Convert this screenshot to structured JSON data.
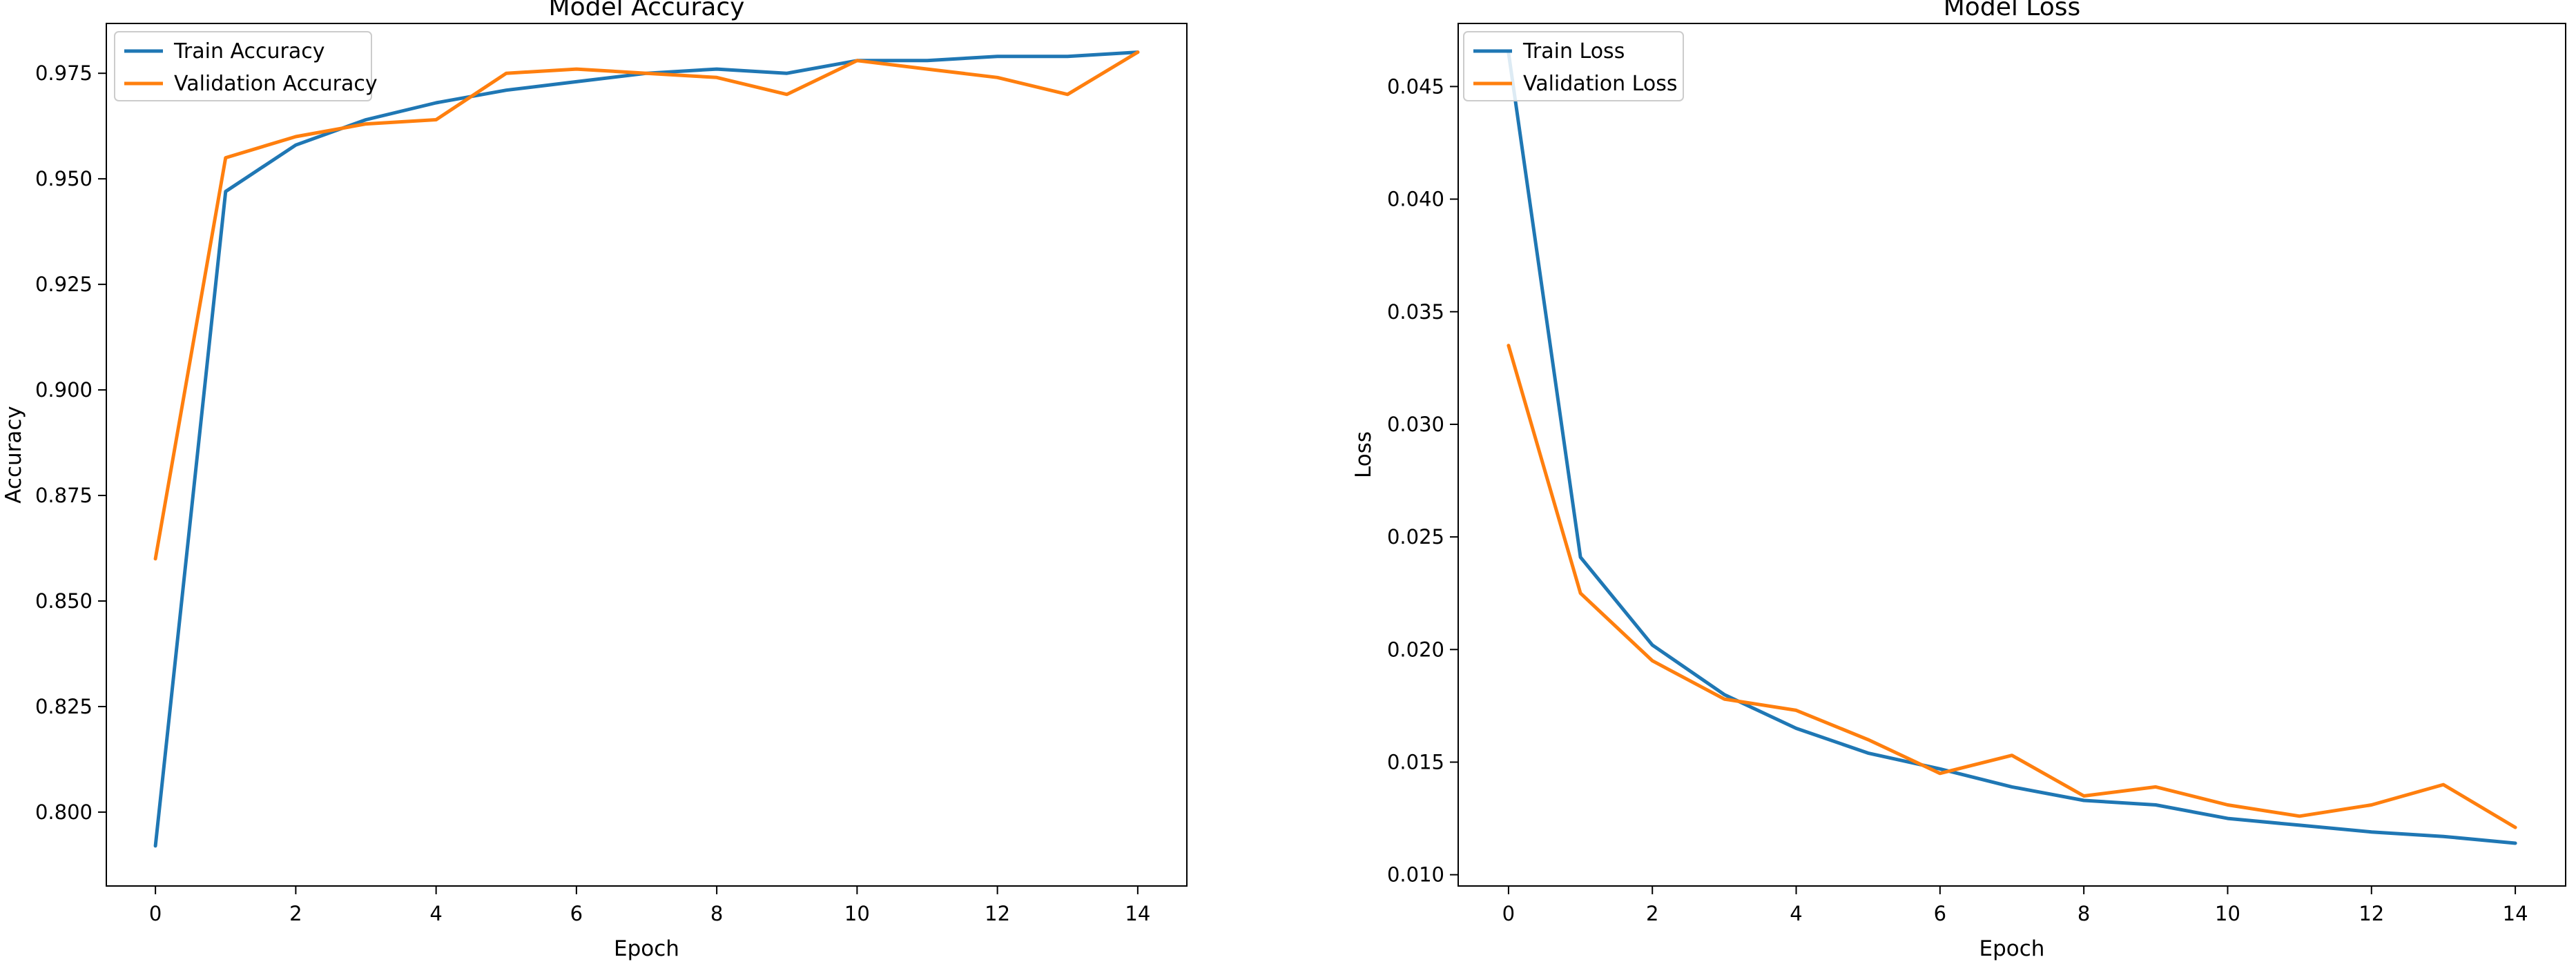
{
  "chart_data": [
    {
      "type": "line",
      "title": "Model Accuracy",
      "xlabel": "Epoch",
      "ylabel": "Accuracy",
      "x": [
        0,
        1,
        2,
        3,
        4,
        5,
        6,
        7,
        8,
        9,
        10,
        11,
        12,
        13,
        14
      ],
      "xlim": [
        -0.7,
        14.7
      ],
      "ylim": [
        0.7825,
        0.9868
      ],
      "xticks": [
        0,
        2,
        4,
        6,
        8,
        10,
        12,
        14
      ],
      "yticks": [
        0.8,
        0.825,
        0.85,
        0.875,
        0.9,
        0.925,
        0.95,
        0.975
      ],
      "ytick_labels": [
        "0.800",
        "0.825",
        "0.850",
        "0.875",
        "0.900",
        "0.925",
        "0.950",
        "0.975"
      ],
      "grid": false,
      "legend_position": "upper-left",
      "series": [
        {
          "name": "Train Accuracy",
          "color": "#1f77b4",
          "values": [
            0.792,
            0.947,
            0.958,
            0.964,
            0.968,
            0.971,
            0.973,
            0.975,
            0.976,
            0.975,
            0.978,
            0.978,
            0.979,
            0.979,
            0.98
          ]
        },
        {
          "name": "Validation Accuracy",
          "color": "#ff7f0e",
          "values": [
            0.86,
            0.955,
            0.96,
            0.963,
            0.964,
            0.975,
            0.976,
            0.975,
            0.974,
            0.97,
            0.978,
            0.976,
            0.974,
            0.97,
            0.98
          ]
        }
      ]
    },
    {
      "type": "line",
      "title": "Model Loss",
      "xlabel": "Epoch",
      "ylabel": "Loss",
      "x": [
        0,
        1,
        2,
        3,
        4,
        5,
        6,
        7,
        8,
        9,
        10,
        11,
        12,
        13,
        14
      ],
      "xlim": [
        -0.7,
        14.7
      ],
      "ylim": [
        0.0095,
        0.0478
      ],
      "xticks": [
        0,
        2,
        4,
        6,
        8,
        10,
        12,
        14
      ],
      "yticks": [
        0.01,
        0.015,
        0.02,
        0.025,
        0.03,
        0.035,
        0.04,
        0.045
      ],
      "ytick_labels": [
        "0.010",
        "0.015",
        "0.020",
        "0.025",
        "0.030",
        "0.035",
        "0.040",
        "0.045"
      ],
      "grid": false,
      "legend_position": "upper-left",
      "series": [
        {
          "name": "Train Loss",
          "color": "#1f77b4",
          "values": [
            0.0465,
            0.0241,
            0.0202,
            0.018,
            0.0165,
            0.0154,
            0.0147,
            0.0139,
            0.0133,
            0.0131,
            0.0125,
            0.0122,
            0.0119,
            0.0117,
            0.0114
          ]
        },
        {
          "name": "Validation Loss",
          "color": "#ff7f0e",
          "values": [
            0.0335,
            0.0225,
            0.0195,
            0.0178,
            0.0173,
            0.016,
            0.0145,
            0.0153,
            0.0135,
            0.0139,
            0.0131,
            0.0126,
            0.0131,
            0.014,
            0.0121
          ]
        }
      ]
    }
  ]
}
